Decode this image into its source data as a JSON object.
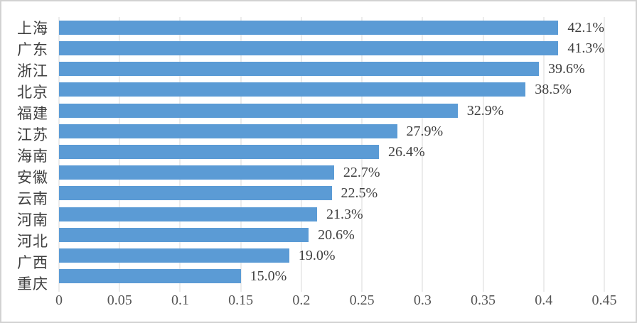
{
  "chart_data": {
    "type": "bar",
    "orientation": "horizontal",
    "title": "",
    "xlabel": "",
    "ylabel": "",
    "categories": [
      "上海",
      "广东",
      "浙江",
      "北京",
      "福建",
      "江苏",
      "海南",
      "安徽",
      "云南",
      "河南",
      "河北",
      "广西",
      "重庆"
    ],
    "values": [
      0.421,
      0.413,
      0.396,
      0.385,
      0.329,
      0.279,
      0.264,
      0.227,
      0.225,
      0.213,
      0.206,
      0.19,
      0.15
    ],
    "value_labels": [
      "42.1%",
      "41.3%",
      "39.6%",
      "38.5%",
      "32.9%",
      "27.9%",
      "26.4%",
      "22.7%",
      "22.5%",
      "21.3%",
      "20.6%",
      "19.0%",
      "15.0%"
    ],
    "x_ticks": [
      "0",
      "0.05",
      "0.1",
      "0.15",
      "0.2",
      "0.25",
      "0.3",
      "0.35",
      "0.4",
      "0.45"
    ],
    "xlim": [
      0,
      0.45
    ],
    "grid": true,
    "legend": false,
    "colors": {
      "bar": "#5B9BD5",
      "gridline": "#D9D9D9",
      "tick_text": "#555555",
      "label_text": "#404040",
      "frame_border": "#D2D2D2",
      "background": "#FFFFFF"
    }
  }
}
